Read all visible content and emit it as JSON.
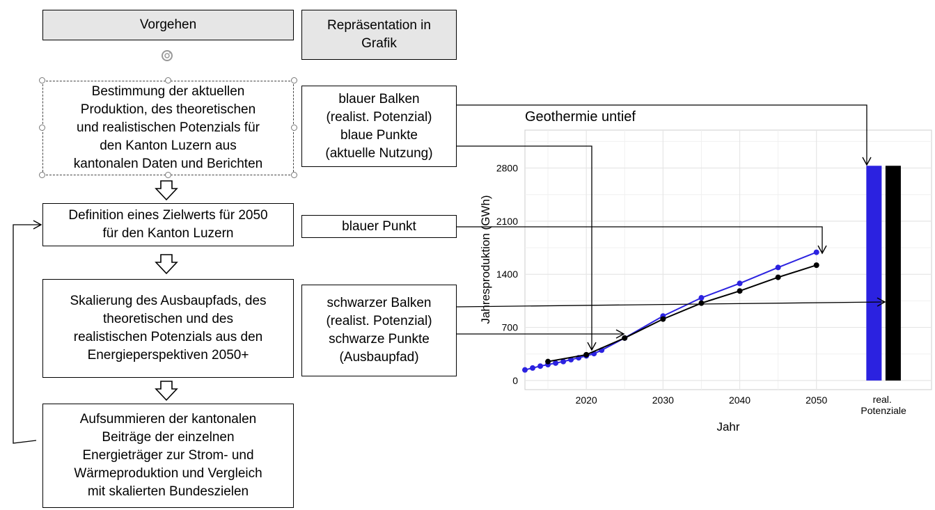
{
  "headers": {
    "left": "Vorgehen",
    "right": "Repräsentation in\nGrafik"
  },
  "steps": [
    {
      "text": "Bestimmung der aktuellen\nProduktion, des theoretischen\nund realistischen Potenzials für\nden Kanton Luzern aus\nkantonalen Daten und Berichten"
    },
    {
      "text": "Definition eines Zielwerts für 2050\nfür den Kanton Luzern"
    },
    {
      "text": "Skalierung des Ausbaupfads, des\ntheoretischen und des\nrealistischen Potenzials aus den\nEnergieperspektiven 2050+"
    },
    {
      "text": "Aufsummieren der kantonalen\nBeiträge der einzelnen\nEnergieträger zur Strom- und\nWärmeproduktion und Vergleich\nmit skalierten Bundeszielen"
    }
  ],
  "representations": [
    {
      "text": "blauer Balken\n(realist. Potenzial)\nblaue Punkte\n(aktuelle Nutzung)"
    },
    {
      "text": "blauer Punkt"
    },
    {
      "text": "schwarzer Balken\n(realist. Potenzial)\nschwarze Punkte\n(Ausbaupfad)"
    }
  ],
  "colors": {
    "blue": "#2b22e0",
    "black": "#000000",
    "grid": "#e6e6e6",
    "header_bg": "#e6e6e6"
  },
  "chart_data": {
    "type": "line",
    "title": "Geothermie untief",
    "xlabel": "Jahr",
    "ylabel": "Jahresproduktion (GWh)",
    "xlim": [
      2012,
      2065
    ],
    "ylim": [
      -120,
      3300
    ],
    "x_ticks": [
      2020,
      2030,
      2040,
      2050
    ],
    "y_ticks": [
      0,
      700,
      1400,
      2100,
      2800
    ],
    "bar_category_label": "real.\nPotenziale",
    "series": [
      {
        "color": "#2b22e0",
        "points": [
          [
            2012,
            140
          ],
          [
            2013,
            165
          ],
          [
            2014,
            190
          ],
          [
            2015,
            210
          ],
          [
            2016,
            230
          ],
          [
            2017,
            250
          ],
          [
            2018,
            275
          ],
          [
            2019,
            300
          ],
          [
            2020,
            325
          ],
          [
            2021,
            355
          ],
          [
            2022,
            400
          ],
          [
            2025,
            560
          ],
          [
            2030,
            850
          ],
          [
            2035,
            1090
          ],
          [
            2040,
            1280
          ],
          [
            2045,
            1490
          ],
          [
            2050,
            1690
          ]
        ]
      },
      {
        "color": "#000000",
        "points": [
          [
            2015,
            250
          ],
          [
            2020,
            340
          ],
          [
            2025,
            560
          ],
          [
            2030,
            810
          ],
          [
            2035,
            1020
          ],
          [
            2040,
            1180
          ],
          [
            2045,
            1360
          ],
          [
            2050,
            1520
          ]
        ]
      }
    ],
    "bars": [
      {
        "color": "#2b22e0",
        "value": 2830
      },
      {
        "color": "#000000",
        "value": 2830
      }
    ]
  }
}
